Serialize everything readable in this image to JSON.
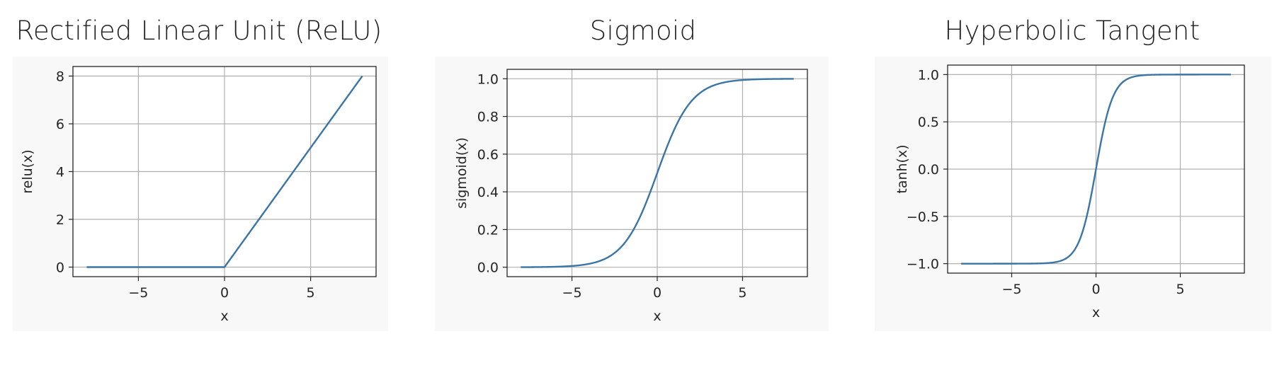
{
  "chart_data": [
    {
      "type": "line",
      "title": "Rectified Linear Unit (ReLU)",
      "xlabel": "x",
      "ylabel": "relu(x)",
      "function": "relu",
      "x_range": [
        -8,
        8
      ],
      "xlim": [
        -8.8,
        8.8
      ],
      "ylim": [
        -0.4,
        8.4
      ],
      "xticks": [
        -5,
        0,
        5
      ],
      "xtick_labels": [
        "−5",
        "0",
        "5"
      ],
      "yticks": [
        0,
        2,
        4,
        6,
        8
      ],
      "ytick_labels": [
        "0",
        "2",
        "4",
        "6",
        "8"
      ],
      "grid": true,
      "color": "#3a75a8"
    },
    {
      "type": "line",
      "title": "Sigmoid",
      "xlabel": "x",
      "ylabel": "sigmoid(x)",
      "function": "sigmoid",
      "x_range": [
        -8,
        8
      ],
      "xlim": [
        -8.8,
        8.8
      ],
      "ylim": [
        -0.05,
        1.05
      ],
      "xticks": [
        -5,
        0,
        5
      ],
      "xtick_labels": [
        "−5",
        "0",
        "5"
      ],
      "yticks": [
        0,
        0.2,
        0.4,
        0.6,
        0.8,
        1.0
      ],
      "ytick_labels": [
        "0.0",
        "0.2",
        "0.4",
        "0.6",
        "0.8",
        "1.0"
      ],
      "grid": true,
      "color": "#3a75a8"
    },
    {
      "type": "line",
      "title": "Hyperbolic Tangent",
      "xlabel": "x",
      "ylabel": "tanh(x)",
      "function": "tanh",
      "x_range": [
        -8,
        8
      ],
      "xlim": [
        -8.8,
        8.8
      ],
      "ylim": [
        -1.1,
        1.1
      ],
      "xticks": [
        -5,
        0,
        5
      ],
      "xtick_labels": [
        "−5",
        "0",
        "5"
      ],
      "yticks": [
        -1.0,
        -0.5,
        0.0,
        0.5,
        1.0
      ],
      "ytick_labels": [
        "−1.0",
        "−0.5",
        "0.0",
        "0.5",
        "1.0"
      ],
      "grid": true,
      "color": "#3a75a8"
    }
  ]
}
